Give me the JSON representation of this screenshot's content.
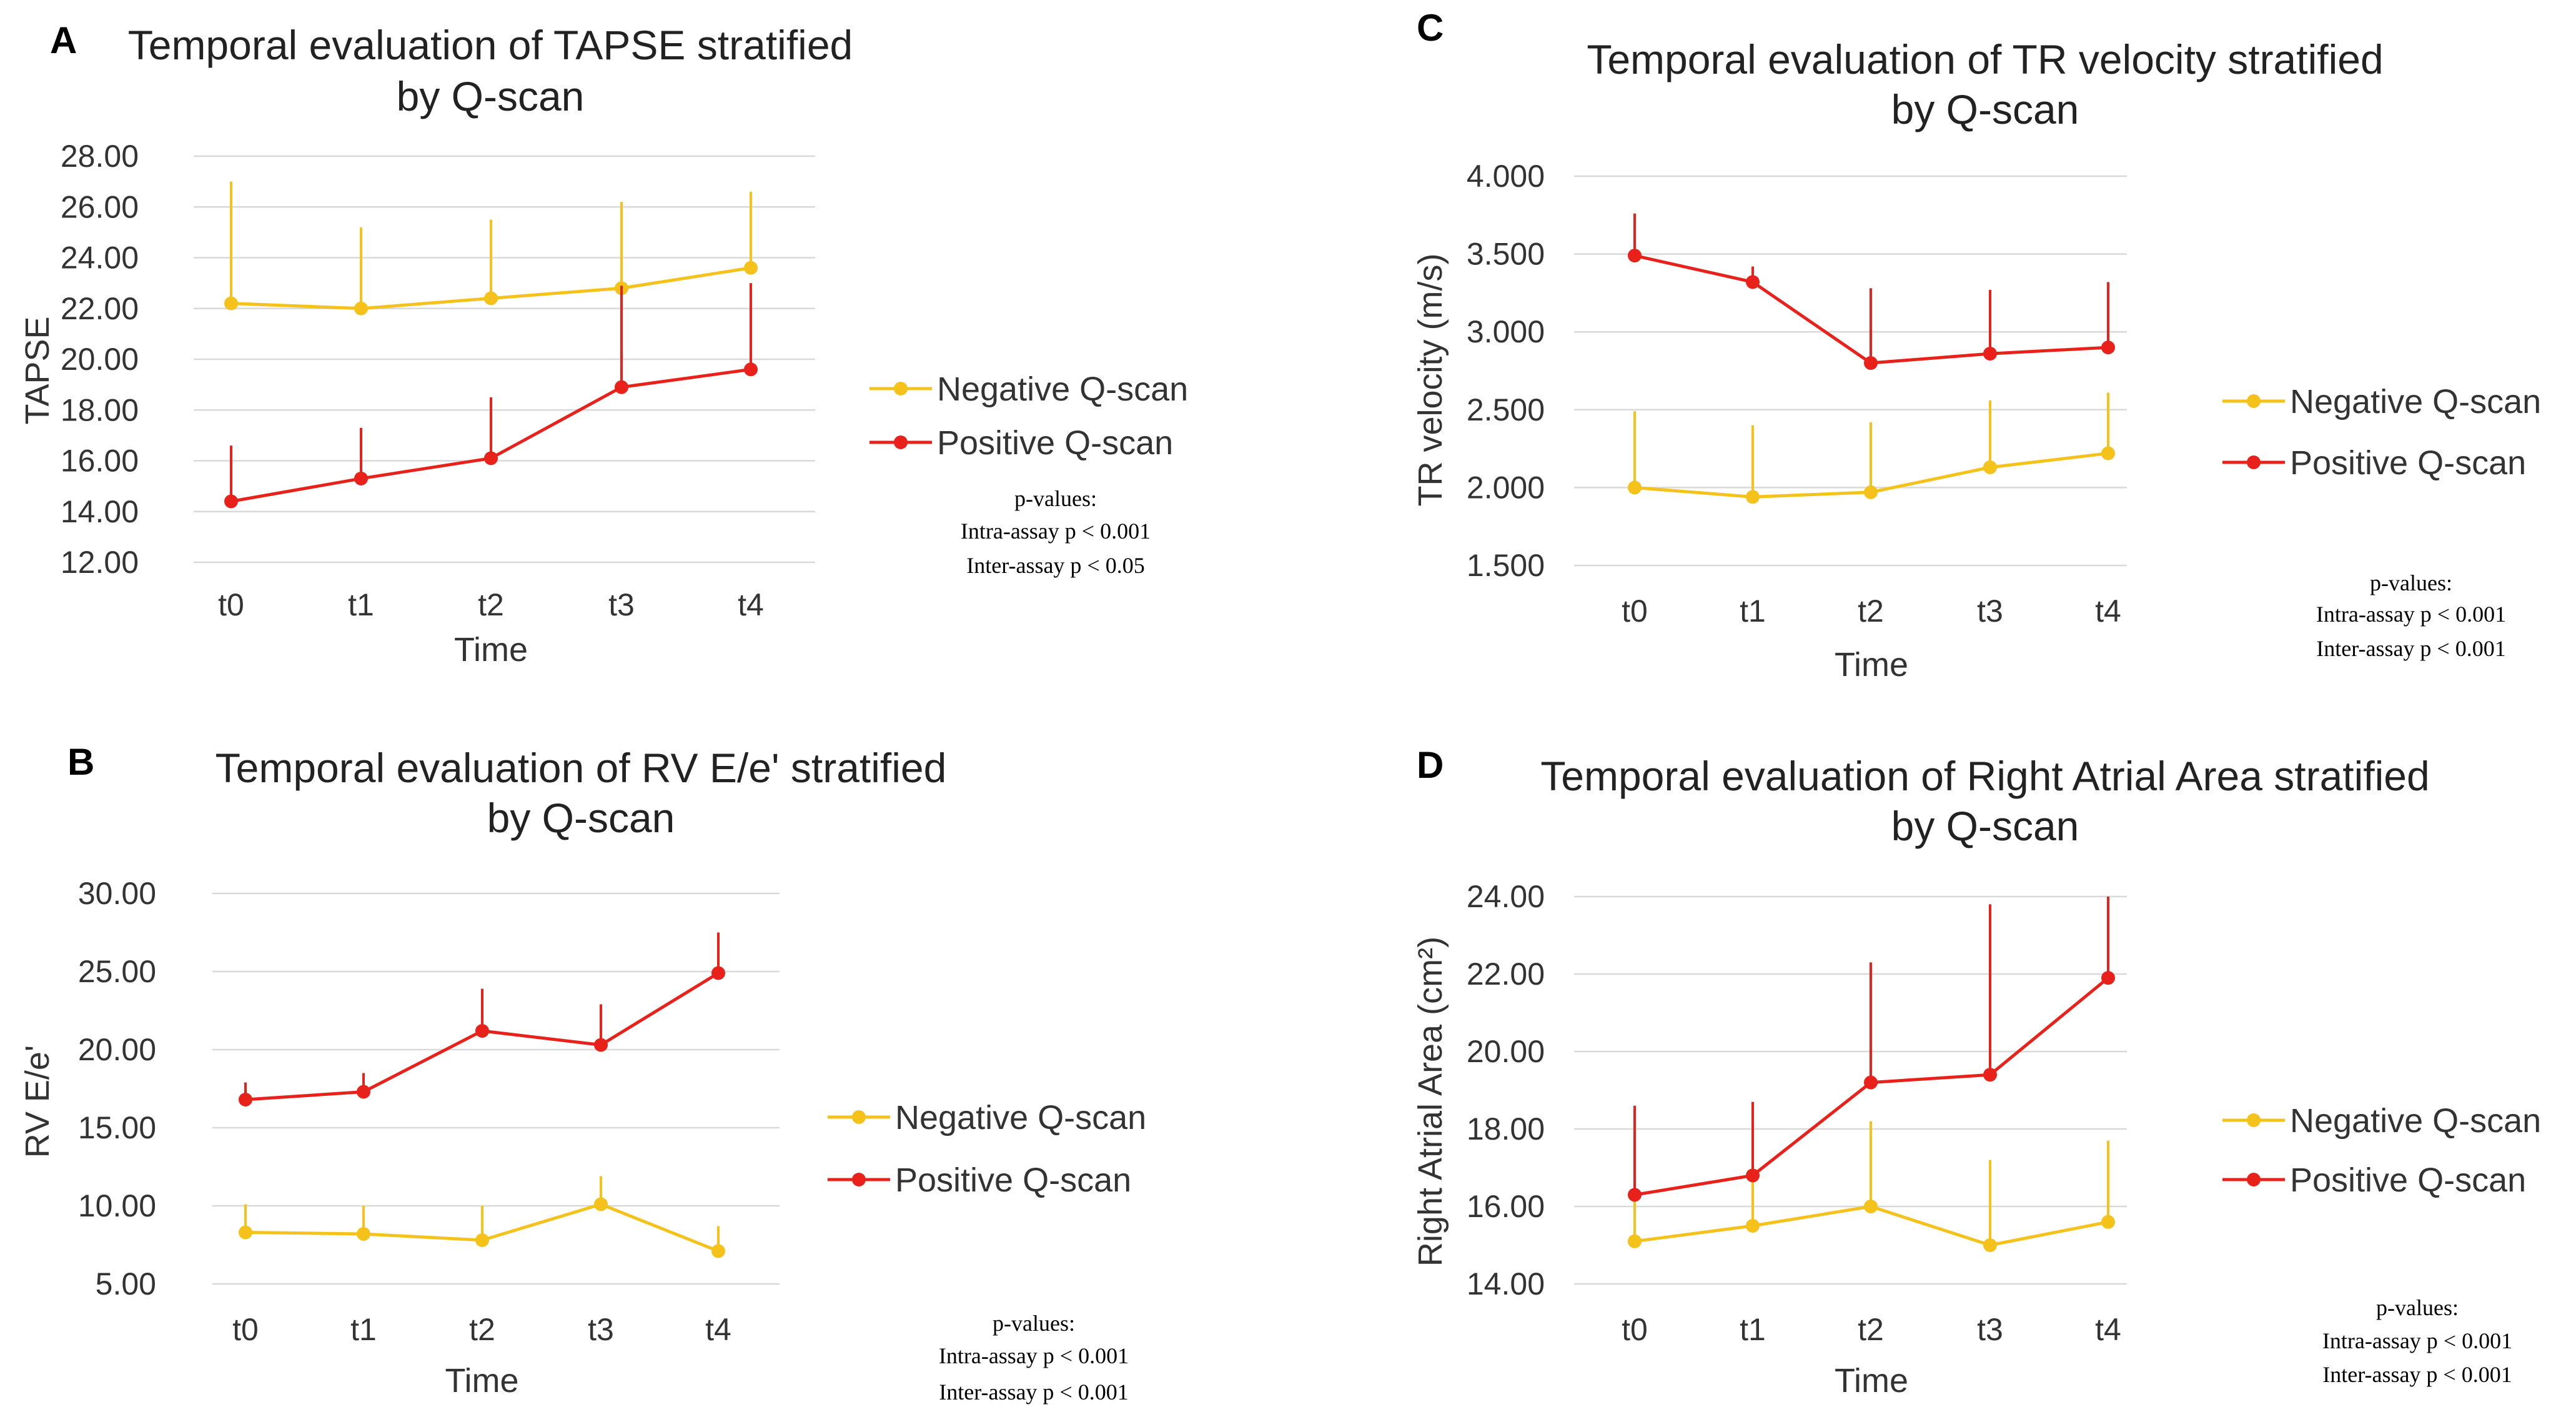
{
  "colors": {
    "negative": "#f5c21b",
    "positive": "#e8221b"
  },
  "pvalues_title": "p-values:",
  "chart_data": [
    {
      "panel": "A",
      "type": "line",
      "title": [
        "Temporal evaluation of TAPSE stratified",
        "by Q-scan"
      ],
      "xlabel": "Time",
      "ylabel": "TAPSE",
      "categories": [
        "t0",
        "t1",
        "t2",
        "t3",
        "t4"
      ],
      "ylim": [
        12,
        28
      ],
      "yticks": [
        "12.00",
        "14.00",
        "16.00",
        "18.00",
        "20.00",
        "22.00",
        "24.00",
        "26.00",
        "28.00"
      ],
      "series": [
        {
          "name": "Negative Q-scan",
          "color": "negative",
          "values": [
            22.2,
            22.0,
            22.4,
            22.8,
            23.6
          ],
          "errors": [
            4.8,
            3.2,
            3.1,
            3.4,
            3.0
          ]
        },
        {
          "name": "Positive Q-scan",
          "color": "positive",
          "values": [
            14.4,
            15.3,
            16.1,
            18.9,
            19.6
          ],
          "errors": [
            2.2,
            2.0,
            2.4,
            4.0,
            3.4
          ]
        }
      ],
      "pvalues": [
        "Intra-assay p < 0.001",
        "Inter-assay p < 0.05"
      ]
    },
    {
      "panel": "B",
      "type": "line",
      "title": [
        "Temporal evaluation of RV E/e' stratified",
        "by Q-scan"
      ],
      "xlabel": "Time",
      "ylabel": "RV E/e'",
      "categories": [
        "t0",
        "t1",
        "t2",
        "t3",
        "t4"
      ],
      "ylim": [
        5,
        30
      ],
      "yticks": [
        "5.00",
        "10.00",
        "15.00",
        "20.00",
        "25.00",
        "30.00"
      ],
      "series": [
        {
          "name": "Negative Q-scan",
          "color": "negative",
          "values": [
            8.3,
            8.2,
            7.8,
            10.1,
            7.1
          ],
          "errors": [
            1.8,
            1.8,
            2.2,
            1.8,
            1.6
          ]
        },
        {
          "name": "Positive Q-scan",
          "color": "positive",
          "values": [
            16.8,
            17.3,
            21.2,
            20.3,
            24.9
          ],
          "errors": [
            1.1,
            1.2,
            2.7,
            2.6,
            2.6
          ]
        }
      ],
      "pvalues": [
        "Intra-assay p < 0.001",
        "Inter-assay p < 0.001"
      ]
    },
    {
      "panel": "C",
      "type": "line",
      "title": [
        "Temporal evaluation of TR velocity stratified",
        "by Q-scan"
      ],
      "xlabel": "Time",
      "ylabel": "TR velocity (m/s)",
      "categories": [
        "t0",
        "t1",
        "t2",
        "t3",
        "t4"
      ],
      "ylim": [
        1.5,
        4.0
      ],
      "yticks": [
        "1.500",
        "2.000",
        "2.500",
        "3.000",
        "3.500",
        "4.000"
      ],
      "series": [
        {
          "name": "Negative Q-scan",
          "color": "negative",
          "values": [
            2.0,
            1.94,
            1.97,
            2.13,
            2.22
          ],
          "errors": [
            0.49,
            0.46,
            0.45,
            0.43,
            0.39
          ]
        },
        {
          "name": "Positive Q-scan",
          "color": "positive",
          "values": [
            3.49,
            3.32,
            2.8,
            2.86,
            2.9
          ],
          "errors": [
            0.27,
            0.1,
            0.48,
            0.41,
            0.42
          ]
        }
      ],
      "pvalues": [
        "Intra-assay p < 0.001",
        "Inter-assay p < 0.001"
      ]
    },
    {
      "panel": "D",
      "type": "line",
      "title": [
        "Temporal evaluation of Right Atrial Area stratified",
        "by Q-scan"
      ],
      "xlabel": "Time",
      "ylabel": "Right Atrial Area (cm²)",
      "categories": [
        "t0",
        "t1",
        "t2",
        "t3",
        "t4"
      ],
      "ylim": [
        14,
        24
      ],
      "yticks": [
        "14.00",
        "16.00",
        "18.00",
        "20.00",
        "22.00",
        "24.00"
      ],
      "series": [
        {
          "name": "Negative Q-scan",
          "color": "negative",
          "values": [
            15.1,
            15.5,
            16.0,
            15.0,
            15.6
          ],
          "errors": [
            1.8,
            1.7,
            2.2,
            2.2,
            2.1
          ]
        },
        {
          "name": "Positive Q-scan",
          "color": "positive",
          "values": [
            16.3,
            16.8,
            19.2,
            19.4,
            21.9
          ],
          "errors": [
            2.3,
            1.9,
            3.1,
            4.4,
            2.1
          ]
        }
      ],
      "pvalues": [
        "Intra-assay p < 0.001",
        "Inter-assay p < 0.001"
      ]
    }
  ]
}
